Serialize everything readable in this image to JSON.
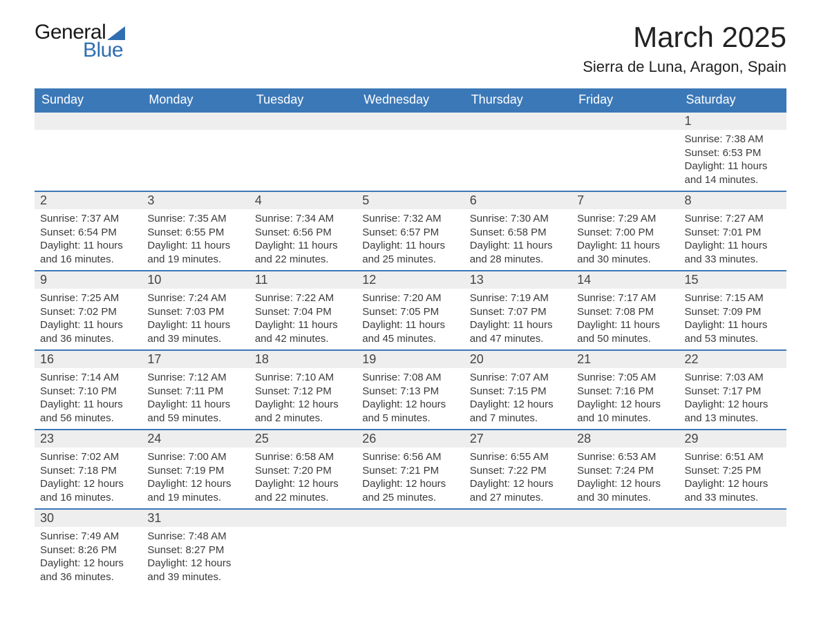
{
  "logo": {
    "general": "General",
    "blue": "Blue"
  },
  "title": {
    "month": "March 2025",
    "location": "Sierra de Luna, Aragon, Spain"
  },
  "dow": [
    "Sunday",
    "Monday",
    "Tuesday",
    "Wednesday",
    "Thursday",
    "Friday",
    "Saturday"
  ],
  "colors": {
    "header_bg": "#3b78b8",
    "header_text": "#ffffff",
    "row_divider": "#3b78b8",
    "daynum_bg": "#eeeeee",
    "body_text": "#3a3a3a",
    "logo_blue": "#2f6eb0",
    "page_bg": "#ffffff"
  },
  "font": {
    "family": "Arial",
    "title_size_pt": 32,
    "location_size_pt": 17,
    "dow_size_pt": 14,
    "body_size_pt": 11
  },
  "weeks": [
    [
      {
        "empty": true
      },
      {
        "empty": true
      },
      {
        "empty": true
      },
      {
        "empty": true
      },
      {
        "empty": true
      },
      {
        "empty": true
      },
      {
        "num": "1",
        "sunrise": "Sunrise: 7:38 AM",
        "sunset": "Sunset: 6:53 PM",
        "daylight1": "Daylight: 11 hours",
        "daylight2": "and 14 minutes."
      }
    ],
    [
      {
        "num": "2",
        "sunrise": "Sunrise: 7:37 AM",
        "sunset": "Sunset: 6:54 PM",
        "daylight1": "Daylight: 11 hours",
        "daylight2": "and 16 minutes."
      },
      {
        "num": "3",
        "sunrise": "Sunrise: 7:35 AM",
        "sunset": "Sunset: 6:55 PM",
        "daylight1": "Daylight: 11 hours",
        "daylight2": "and 19 minutes."
      },
      {
        "num": "4",
        "sunrise": "Sunrise: 7:34 AM",
        "sunset": "Sunset: 6:56 PM",
        "daylight1": "Daylight: 11 hours",
        "daylight2": "and 22 minutes."
      },
      {
        "num": "5",
        "sunrise": "Sunrise: 7:32 AM",
        "sunset": "Sunset: 6:57 PM",
        "daylight1": "Daylight: 11 hours",
        "daylight2": "and 25 minutes."
      },
      {
        "num": "6",
        "sunrise": "Sunrise: 7:30 AM",
        "sunset": "Sunset: 6:58 PM",
        "daylight1": "Daylight: 11 hours",
        "daylight2": "and 28 minutes."
      },
      {
        "num": "7",
        "sunrise": "Sunrise: 7:29 AM",
        "sunset": "Sunset: 7:00 PM",
        "daylight1": "Daylight: 11 hours",
        "daylight2": "and 30 minutes."
      },
      {
        "num": "8",
        "sunrise": "Sunrise: 7:27 AM",
        "sunset": "Sunset: 7:01 PM",
        "daylight1": "Daylight: 11 hours",
        "daylight2": "and 33 minutes."
      }
    ],
    [
      {
        "num": "9",
        "sunrise": "Sunrise: 7:25 AM",
        "sunset": "Sunset: 7:02 PM",
        "daylight1": "Daylight: 11 hours",
        "daylight2": "and 36 minutes."
      },
      {
        "num": "10",
        "sunrise": "Sunrise: 7:24 AM",
        "sunset": "Sunset: 7:03 PM",
        "daylight1": "Daylight: 11 hours",
        "daylight2": "and 39 minutes."
      },
      {
        "num": "11",
        "sunrise": "Sunrise: 7:22 AM",
        "sunset": "Sunset: 7:04 PM",
        "daylight1": "Daylight: 11 hours",
        "daylight2": "and 42 minutes."
      },
      {
        "num": "12",
        "sunrise": "Sunrise: 7:20 AM",
        "sunset": "Sunset: 7:05 PM",
        "daylight1": "Daylight: 11 hours",
        "daylight2": "and 45 minutes."
      },
      {
        "num": "13",
        "sunrise": "Sunrise: 7:19 AM",
        "sunset": "Sunset: 7:07 PM",
        "daylight1": "Daylight: 11 hours",
        "daylight2": "and 47 minutes."
      },
      {
        "num": "14",
        "sunrise": "Sunrise: 7:17 AM",
        "sunset": "Sunset: 7:08 PM",
        "daylight1": "Daylight: 11 hours",
        "daylight2": "and 50 minutes."
      },
      {
        "num": "15",
        "sunrise": "Sunrise: 7:15 AM",
        "sunset": "Sunset: 7:09 PM",
        "daylight1": "Daylight: 11 hours",
        "daylight2": "and 53 minutes."
      }
    ],
    [
      {
        "num": "16",
        "sunrise": "Sunrise: 7:14 AM",
        "sunset": "Sunset: 7:10 PM",
        "daylight1": "Daylight: 11 hours",
        "daylight2": "and 56 minutes."
      },
      {
        "num": "17",
        "sunrise": "Sunrise: 7:12 AM",
        "sunset": "Sunset: 7:11 PM",
        "daylight1": "Daylight: 11 hours",
        "daylight2": "and 59 minutes."
      },
      {
        "num": "18",
        "sunrise": "Sunrise: 7:10 AM",
        "sunset": "Sunset: 7:12 PM",
        "daylight1": "Daylight: 12 hours",
        "daylight2": "and 2 minutes."
      },
      {
        "num": "19",
        "sunrise": "Sunrise: 7:08 AM",
        "sunset": "Sunset: 7:13 PM",
        "daylight1": "Daylight: 12 hours",
        "daylight2": "and 5 minutes."
      },
      {
        "num": "20",
        "sunrise": "Sunrise: 7:07 AM",
        "sunset": "Sunset: 7:15 PM",
        "daylight1": "Daylight: 12 hours",
        "daylight2": "and 7 minutes."
      },
      {
        "num": "21",
        "sunrise": "Sunrise: 7:05 AM",
        "sunset": "Sunset: 7:16 PM",
        "daylight1": "Daylight: 12 hours",
        "daylight2": "and 10 minutes."
      },
      {
        "num": "22",
        "sunrise": "Sunrise: 7:03 AM",
        "sunset": "Sunset: 7:17 PM",
        "daylight1": "Daylight: 12 hours",
        "daylight2": "and 13 minutes."
      }
    ],
    [
      {
        "num": "23",
        "sunrise": "Sunrise: 7:02 AM",
        "sunset": "Sunset: 7:18 PM",
        "daylight1": "Daylight: 12 hours",
        "daylight2": "and 16 minutes."
      },
      {
        "num": "24",
        "sunrise": "Sunrise: 7:00 AM",
        "sunset": "Sunset: 7:19 PM",
        "daylight1": "Daylight: 12 hours",
        "daylight2": "and 19 minutes."
      },
      {
        "num": "25",
        "sunrise": "Sunrise: 6:58 AM",
        "sunset": "Sunset: 7:20 PM",
        "daylight1": "Daylight: 12 hours",
        "daylight2": "and 22 minutes."
      },
      {
        "num": "26",
        "sunrise": "Sunrise: 6:56 AM",
        "sunset": "Sunset: 7:21 PM",
        "daylight1": "Daylight: 12 hours",
        "daylight2": "and 25 minutes."
      },
      {
        "num": "27",
        "sunrise": "Sunrise: 6:55 AM",
        "sunset": "Sunset: 7:22 PM",
        "daylight1": "Daylight: 12 hours",
        "daylight2": "and 27 minutes."
      },
      {
        "num": "28",
        "sunrise": "Sunrise: 6:53 AM",
        "sunset": "Sunset: 7:24 PM",
        "daylight1": "Daylight: 12 hours",
        "daylight2": "and 30 minutes."
      },
      {
        "num": "29",
        "sunrise": "Sunrise: 6:51 AM",
        "sunset": "Sunset: 7:25 PM",
        "daylight1": "Daylight: 12 hours",
        "daylight2": "and 33 minutes."
      }
    ],
    [
      {
        "num": "30",
        "sunrise": "Sunrise: 7:49 AM",
        "sunset": "Sunset: 8:26 PM",
        "daylight1": "Daylight: 12 hours",
        "daylight2": "and 36 minutes."
      },
      {
        "num": "31",
        "sunrise": "Sunrise: 7:48 AM",
        "sunset": "Sunset: 8:27 PM",
        "daylight1": "Daylight: 12 hours",
        "daylight2": "and 39 minutes."
      },
      {
        "empty": true
      },
      {
        "empty": true
      },
      {
        "empty": true
      },
      {
        "empty": true
      },
      {
        "empty": true
      }
    ]
  ]
}
